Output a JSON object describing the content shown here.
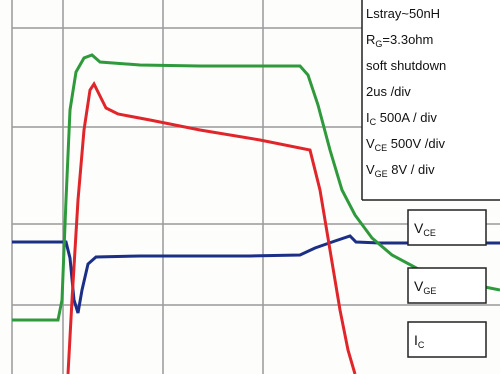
{
  "legend": {
    "lines": [
      {
        "main": "Lstray~50nH"
      },
      {
        "main": "R",
        "sub": "G",
        "rest": "=3.3ohm"
      },
      {
        "main": "soft shutdown"
      },
      {
        "main": "2us /div"
      },
      {
        "main": "I",
        "sub": "C",
        "rest": " 500A / div"
      },
      {
        "main": "V",
        "sub": "CE",
        "rest": " 500V /div"
      },
      {
        "main": "V",
        "sub": "GE",
        "rest": " 8V / div"
      }
    ]
  },
  "trace_labels": [
    {
      "main": "V",
      "sub": "CE"
    },
    {
      "main": "V",
      "sub": "GE"
    },
    {
      "main": "I",
      "sub": "C"
    }
  ]
}
